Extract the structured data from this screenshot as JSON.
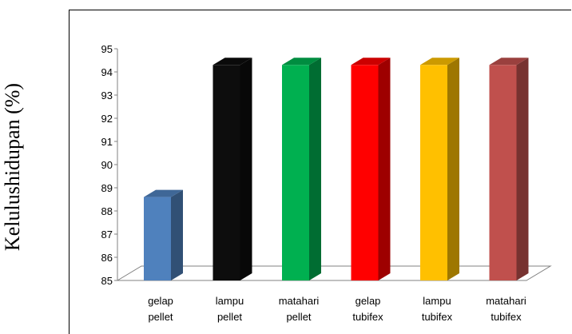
{
  "chart_data": {
    "type": "bar",
    "title": "",
    "ylabel": "Kelulushidupan (%)",
    "xlabel": "",
    "ylim": [
      85,
      95
    ],
    "yticks": [
      85,
      86,
      87,
      88,
      89,
      90,
      91,
      92,
      93,
      94,
      95
    ],
    "categories": [
      [
        "gelap",
        "pellet"
      ],
      [
        "lampu",
        "pellet"
      ],
      [
        "matahari",
        "pellet"
      ],
      [
        "gelap",
        "tubifex"
      ],
      [
        "lampu",
        "tubifex"
      ],
      [
        "matahari",
        "tubifex"
      ]
    ],
    "values": [
      88.6,
      94.3,
      94.3,
      94.3,
      94.3,
      94.3
    ],
    "colors": [
      "#4f81bd",
      "#0d0d0d",
      "#00b050",
      "#ff0000",
      "#ffc000",
      "#c0504d"
    ],
    "grid": false,
    "legend": "none",
    "style": "3d-column"
  }
}
